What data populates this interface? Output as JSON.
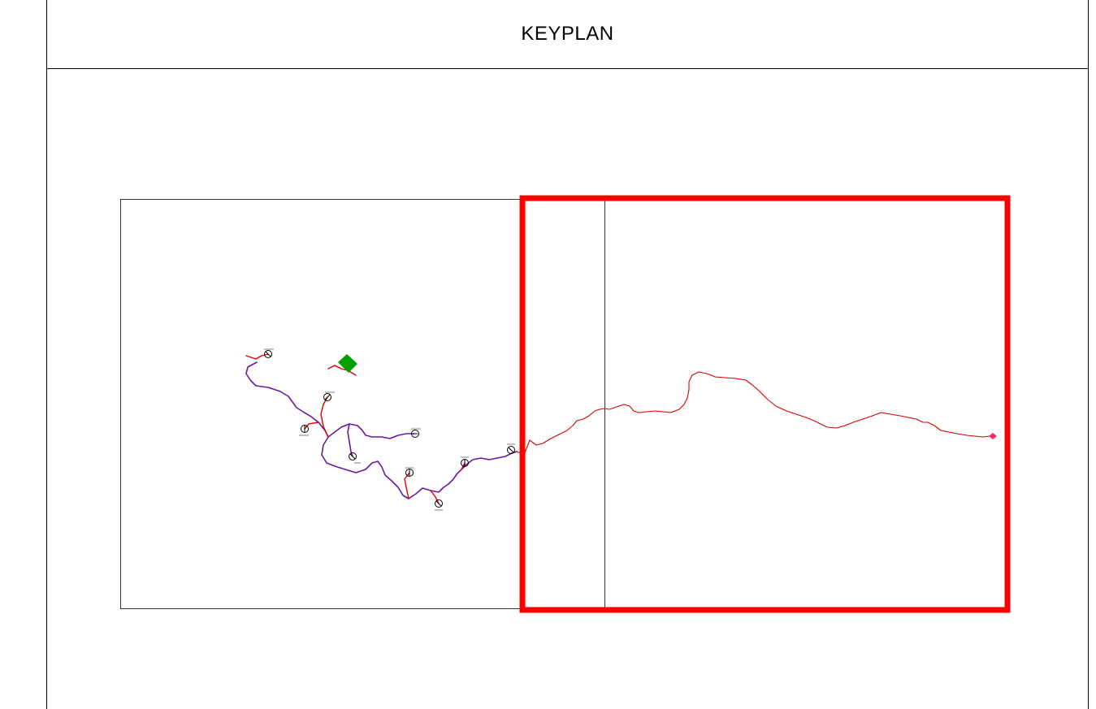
{
  "keyplan": {
    "title": "KEYPLAN"
  },
  "colors": {
    "highlight": "#ff0000",
    "route_red": "#e00000",
    "route_purple": "#6a1aa0",
    "site_marker": "#00a000",
    "endpoint_marker": "#ff2a6a",
    "frame_line": "#000000"
  },
  "map": {
    "sheets": [
      {
        "id": "sheet-1",
        "highlighted": false
      },
      {
        "id": "sheet-2",
        "highlighted": true
      }
    ],
    "stations_count": 10
  }
}
